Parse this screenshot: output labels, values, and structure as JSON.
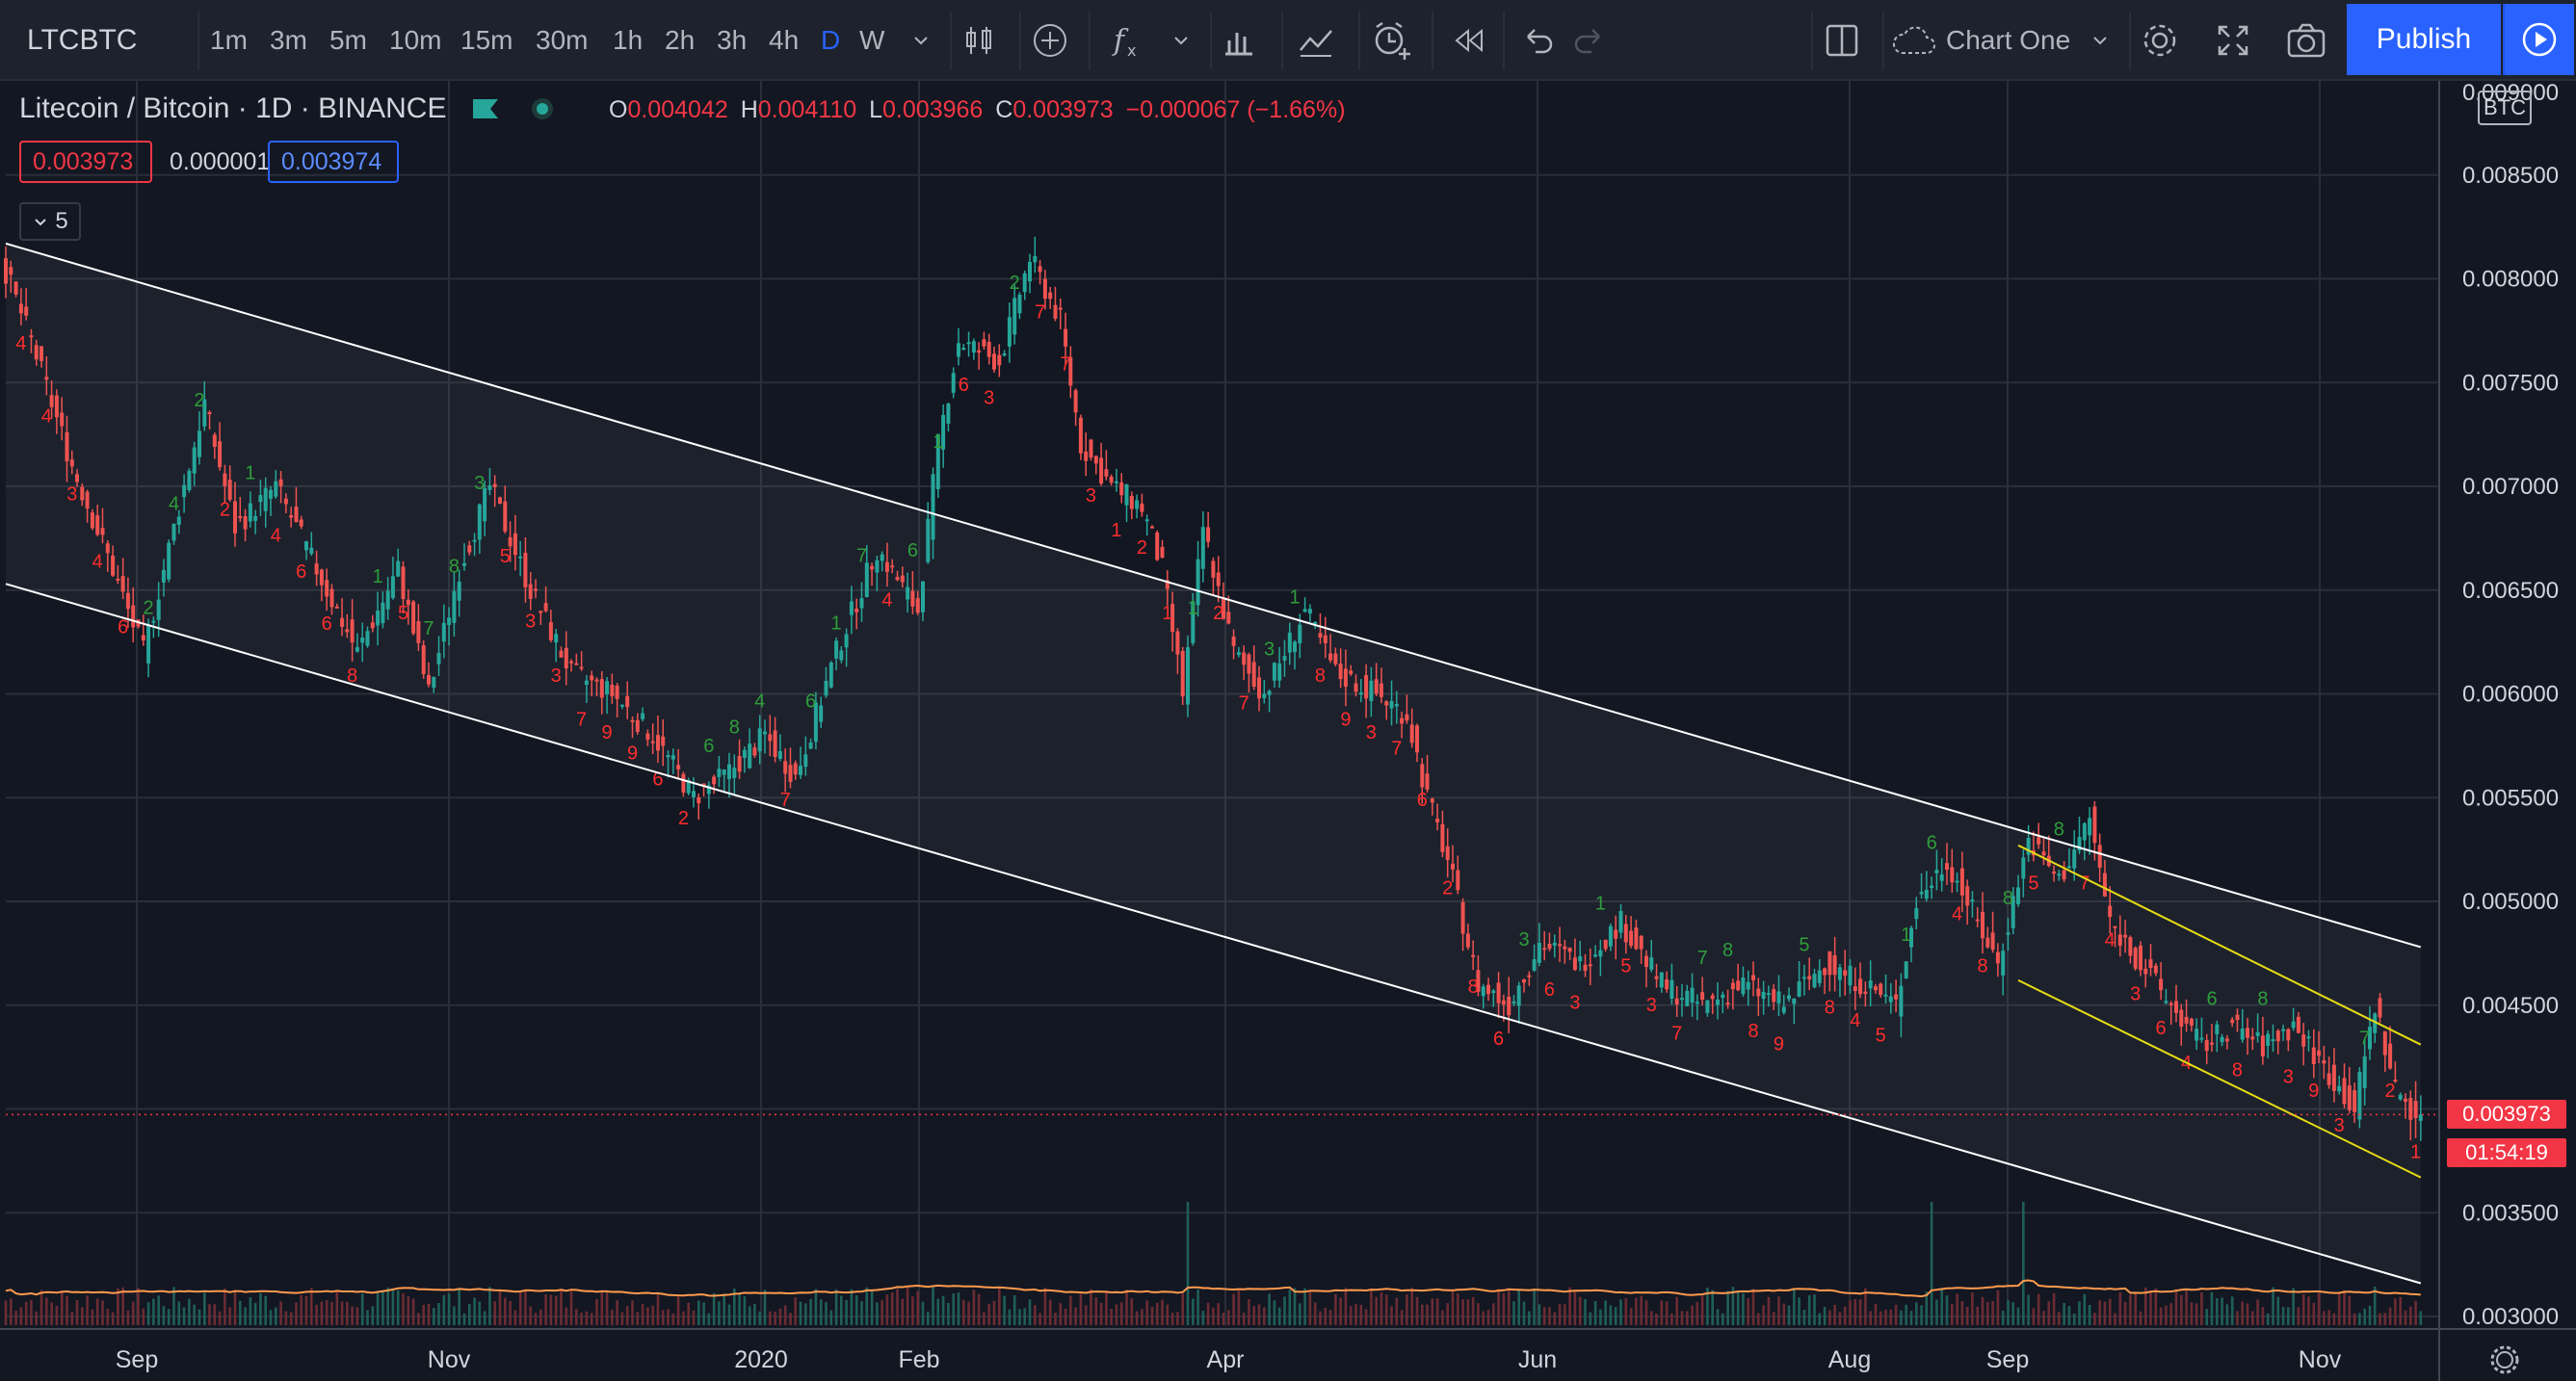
{
  "toolbar": {
    "symbol": "LTCBTC",
    "timeframes": [
      "1m",
      "3m",
      "5m",
      "10m",
      "15m",
      "30m",
      "1h",
      "2h",
      "3h",
      "4h",
      "D",
      "W"
    ],
    "active_timeframe": "D",
    "layout_name": "Chart One",
    "publish_label": "Publish",
    "icons": [
      "chevron-down-icon",
      "candles-icon",
      "compare-add-icon",
      "indicators-fx-icon",
      "chevron-down-icon",
      "financials-icon",
      "templates-icon",
      "alert-icon",
      "replay-icon",
      "undo-icon",
      "redo-icon",
      "layout-icon",
      "cloud-icon",
      "chevron-down-icon",
      "settings-icon",
      "fullscreen-icon",
      "snapshot-icon",
      "play-icon"
    ]
  },
  "legend": {
    "title": "Litecoin / Bitcoin · 1D · BINANCE",
    "open_label": "O",
    "open": "0.004042",
    "high_label": "H",
    "high": "0.004110",
    "low_label": "L",
    "low": "0.003966",
    "close_label": "C",
    "close": "0.003973",
    "change": "−0.000067 (−1.66%)",
    "bid": "0.003973",
    "spread": "0.000001",
    "ask": "0.003974",
    "collapsed_count": "5"
  },
  "price_axis": {
    "currency": "BTC",
    "top_label": "0.009000",
    "last_price": "0.003973",
    "countdown": "01:54:19"
  },
  "colors": {
    "background": "#131722",
    "up": "#26a69a",
    "down": "#ef5350",
    "td_up": "#2e9e3a",
    "td_down": "#ff2d2d",
    "channel_main": "#ffffff",
    "channel_small": "#e6dc14",
    "volume_ma": "#ff9a4d",
    "accent": "#2962ff"
  },
  "chart_data": {
    "type": "candlestick",
    "symbol": "LTCBTC",
    "interval": "1D",
    "exchange": "BINANCE",
    "y_ticks": [
      0.003,
      0.0035,
      0.004,
      0.0045,
      0.005,
      0.0055,
      0.006,
      0.0065,
      0.007,
      0.0075,
      0.008,
      0.0085
    ],
    "y_tick_labels": [
      "0.003000",
      "0.003500",
      "0.004000",
      "0.004500",
      "0.005000",
      "0.005500",
      "0.006000",
      "0.006500",
      "0.007000",
      "0.007500",
      "0.008000",
      "0.008500"
    ],
    "x_labels": [
      "Sep",
      "Nov",
      "2020",
      "Feb",
      "Apr",
      "Jun",
      "Aug",
      "Sep",
      "Nov"
    ],
    "ylim": [
      0.0029,
      0.0091
    ],
    "grid": true,
    "last_close": 0.003973,
    "price_path": [
      [
        0,
        0.0081
      ],
      [
        6,
        0.0077
      ],
      [
        14,
        0.0071
      ],
      [
        22,
        0.0066
      ],
      [
        28,
        0.0062
      ],
      [
        34,
        0.0068
      ],
      [
        40,
        0.0074
      ],
      [
        46,
        0.0068
      ],
      [
        54,
        0.007
      ],
      [
        62,
        0.0066
      ],
      [
        70,
        0.0062
      ],
      [
        78,
        0.0066
      ],
      [
        84,
        0.006
      ],
      [
        90,
        0.0066
      ],
      [
        96,
        0.007
      ],
      [
        104,
        0.0065
      ],
      [
        112,
        0.0061
      ],
      [
        120,
        0.006
      ],
      [
        128,
        0.0058
      ],
      [
        136,
        0.0055
      ],
      [
        142,
        0.0056
      ],
      [
        150,
        0.0058
      ],
      [
        156,
        0.0056
      ],
      [
        164,
        0.0062
      ],
      [
        172,
        0.0067
      ],
      [
        180,
        0.0064
      ],
      [
        184,
        0.0072
      ],
      [
        188,
        0.0077
      ],
      [
        196,
        0.0076
      ],
      [
        202,
        0.0081
      ],
      [
        208,
        0.0078
      ],
      [
        212,
        0.0072
      ],
      [
        218,
        0.007
      ],
      [
        224,
        0.0069
      ],
      [
        228,
        0.0066
      ],
      [
        232,
        0.006
      ],
      [
        236,
        0.0068
      ],
      [
        242,
        0.0062
      ],
      [
        248,
        0.006
      ],
      [
        256,
        0.0064
      ],
      [
        262,
        0.0061
      ],
      [
        270,
        0.006
      ],
      [
        276,
        0.0059
      ],
      [
        280,
        0.0055
      ],
      [
        284,
        0.0052
      ],
      [
        290,
        0.0046
      ],
      [
        296,
        0.0045
      ],
      [
        302,
        0.0048
      ],
      [
        310,
        0.0047
      ],
      [
        318,
        0.0049
      ],
      [
        326,
        0.0046
      ],
      [
        334,
        0.0045
      ],
      [
        342,
        0.0046
      ],
      [
        350,
        0.0045
      ],
      [
        358,
        0.0047
      ],
      [
        366,
        0.0046
      ],
      [
        372,
        0.0045
      ],
      [
        376,
        0.005
      ],
      [
        382,
        0.0052
      ],
      [
        388,
        0.0049
      ],
      [
        392,
        0.0047
      ],
      [
        398,
        0.0053
      ],
      [
        404,
        0.0051
      ],
      [
        410,
        0.0054
      ],
      [
        414,
        0.0049
      ],
      [
        420,
        0.0047
      ],
      [
        426,
        0.0045
      ],
      [
        432,
        0.0043
      ],
      [
        438,
        0.0044
      ],
      [
        444,
        0.0043
      ],
      [
        450,
        0.0044
      ],
      [
        456,
        0.0042
      ],
      [
        462,
        0.004
      ],
      [
        466,
        0.0045
      ],
      [
        470,
        0.0041
      ],
      [
        474,
        0.003973
      ]
    ],
    "channel_main": {
      "upper": [
        [
          0,
          0.00817
        ],
        [
          474,
          0.00478
        ]
      ],
      "lower": [
        [
          0,
          0.00653
        ],
        [
          474,
          0.00316
        ]
      ]
    },
    "channel_small": {
      "upper": [
        [
          395,
          0.00527
        ],
        [
          474,
          0.00431
        ]
      ],
      "lower": [
        [
          395,
          0.00462
        ],
        [
          474,
          0.00367
        ]
      ]
    },
    "volume_spike_days": [
      232,
      378,
      396
    ]
  }
}
